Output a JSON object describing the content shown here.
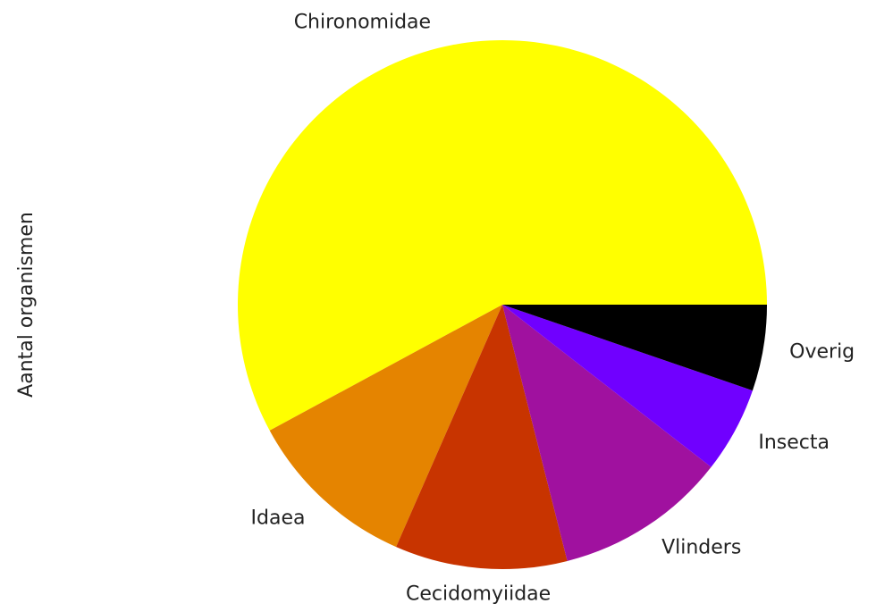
{
  "chart_data": {
    "type": "pie",
    "ylabel": "Aantal organismen",
    "categories": [
      "Chironomidae",
      "Idaea",
      "Cecidomyiidae",
      "Vlinders",
      "Insecta",
      "Overig"
    ],
    "values": [
      11,
      2,
      2,
      2,
      1,
      1
    ],
    "colors": [
      "#ffff00",
      "#e58400",
      "#c83400",
      "#a0119f",
      "#7000ff",
      "#000000"
    ],
    "start_angle": 0,
    "direction": "counterclockwise"
  }
}
